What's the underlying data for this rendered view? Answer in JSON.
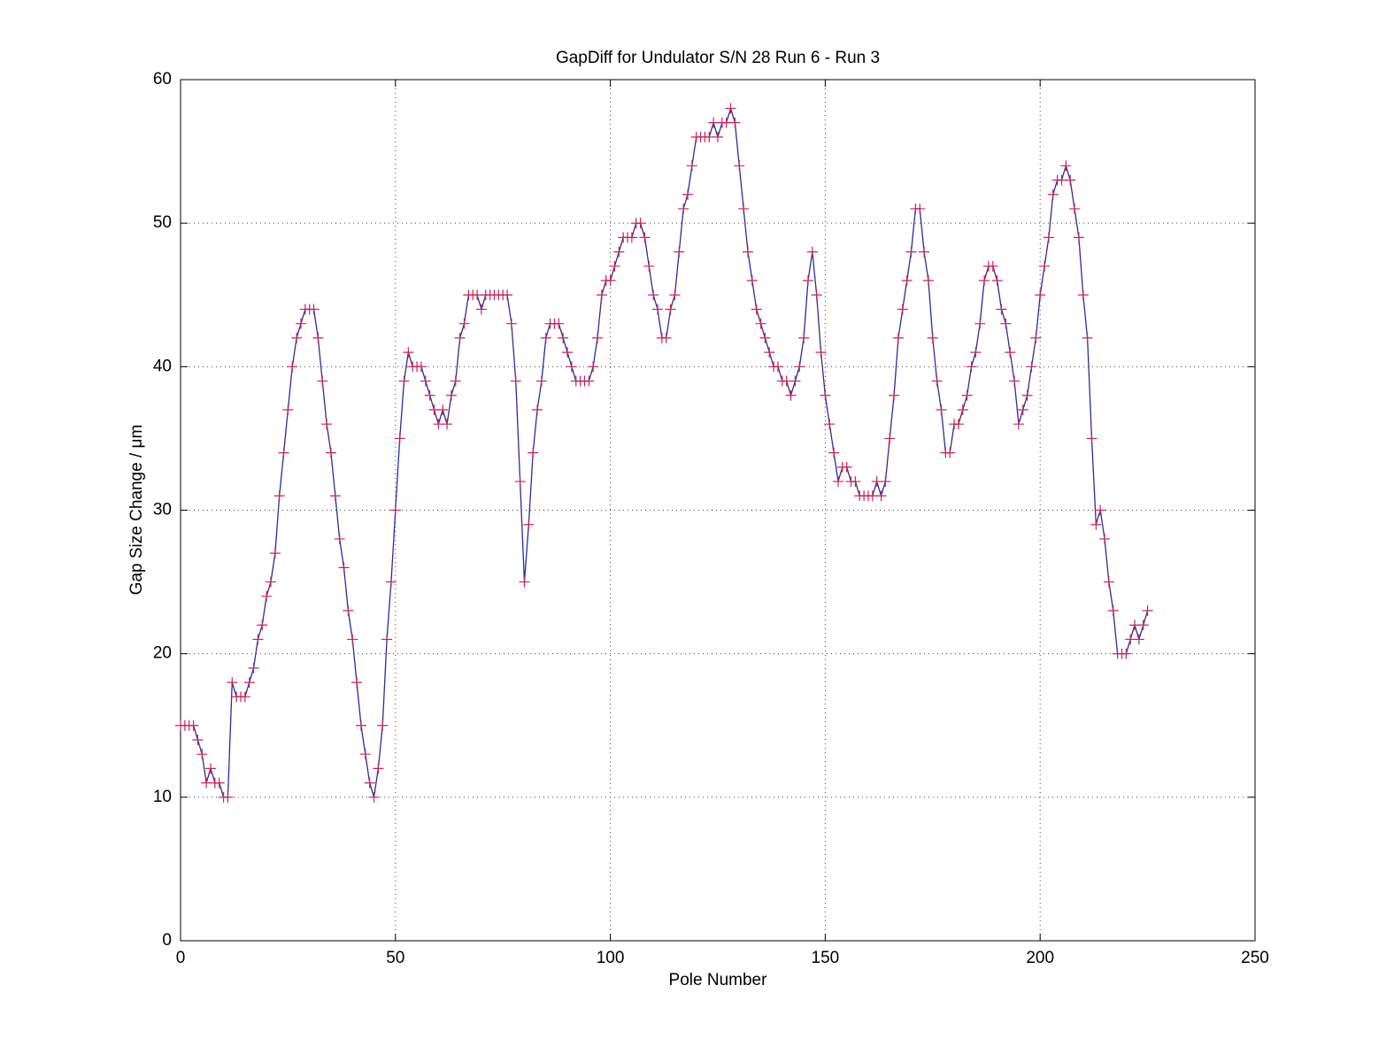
{
  "chart_data": {
    "type": "line",
    "title": "GapDiff  for Undulator S/N 28 Run 6 - Run 3",
    "x_label": "Pole Number",
    "y_label": "Gap Size Change / μm",
    "x": [
      0,
      1,
      2,
      3,
      4,
      5,
      6,
      7,
      8,
      9,
      10,
      11,
      12,
      13,
      14,
      15,
      16,
      17,
      18,
      19,
      20,
      21,
      22,
      23,
      24,
      25,
      26,
      27,
      28,
      29,
      30,
      31,
      32,
      33,
      34,
      35,
      36,
      37,
      38,
      39,
      40,
      41,
      42,
      43,
      44,
      45,
      46,
      47,
      48,
      49,
      50,
      51,
      52,
      53,
      54,
      55,
      56,
      57,
      58,
      59,
      60,
      61,
      62,
      63,
      64,
      65,
      66,
      67,
      68,
      69,
      70,
      71,
      72,
      73,
      74,
      75,
      76,
      77,
      78,
      79,
      80,
      81,
      82,
      83,
      84,
      85,
      86,
      87,
      88,
      89,
      90,
      91,
      92,
      93,
      94,
      95,
      96,
      97,
      98,
      99,
      100,
      101,
      102,
      103,
      104,
      105,
      106,
      107,
      108,
      109,
      110,
      111,
      112,
      113,
      114,
      115,
      116,
      117,
      118,
      119,
      120,
      121,
      122,
      123,
      124,
      125,
      126,
      127,
      128,
      129,
      130,
      131,
      132,
      133,
      134,
      135,
      136,
      137,
      138,
      139,
      140,
      141,
      142,
      143,
      144,
      145,
      146,
      147,
      148,
      149,
      150,
      151,
      152,
      153,
      154,
      155,
      156,
      157,
      158,
      159,
      160,
      161,
      162,
      163,
      164,
      165,
      166,
      167,
      168,
      169,
      170,
      171,
      172,
      173,
      174,
      175,
      176,
      177,
      178,
      179,
      180,
      181,
      182,
      183,
      184,
      185,
      186,
      187,
      188,
      189,
      190,
      191,
      192,
      193,
      194,
      195,
      196,
      197,
      198,
      199,
      200,
      201,
      202,
      203,
      204,
      205,
      206,
      207,
      208,
      209,
      210,
      211,
      212,
      213,
      214,
      215,
      216,
      217,
      218,
      219,
      220,
      221,
      222,
      223,
      224,
      225
    ],
    "series": [
      {
        "line_color": "#2b2b9e",
        "marker_color": "#cc2255",
        "values": [
          15,
          15,
          15,
          15,
          14,
          13,
          11,
          12,
          11,
          11,
          10,
          10,
          18,
          17,
          17,
          17,
          18,
          19,
          21,
          22,
          24,
          25,
          27,
          31,
          34,
          37,
          40,
          42,
          43,
          44,
          44,
          44,
          42,
          39,
          36,
          34,
          31,
          28,
          26,
          23,
          21,
          18,
          15,
          13,
          11,
          10,
          12,
          15,
          21,
          25,
          30,
          35,
          39,
          41,
          40,
          40,
          40,
          39,
          38,
          37,
          36,
          37,
          36,
          38,
          39,
          42,
          43,
          45,
          45,
          45,
          44,
          45,
          45,
          45,
          45,
          45,
          45,
          43,
          39,
          32,
          25,
          29,
          34,
          37,
          39,
          42,
          43,
          43,
          43,
          42,
          41,
          40,
          39,
          39,
          39,
          39,
          40,
          42,
          45,
          46,
          46,
          47,
          48,
          49,
          49,
          49,
          50,
          50,
          49,
          47,
          45,
          44,
          42,
          42,
          44,
          45,
          48,
          51,
          52,
          54,
          56,
          56,
          56,
          56,
          57,
          56,
          57,
          57,
          58,
          57,
          54,
          51,
          48,
          46,
          44,
          43,
          42,
          41,
          40,
          40,
          39,
          39,
          38,
          39,
          40,
          42,
          46,
          48,
          45,
          41,
          38,
          36,
          34,
          32,
          33,
          33,
          32,
          32,
          31,
          31,
          31,
          31,
          32,
          31,
          32,
          35,
          38,
          42,
          44,
          46,
          48,
          51,
          51,
          48,
          46,
          42,
          39,
          37,
          34,
          34,
          36,
          36,
          37,
          38,
          40,
          41,
          43,
          46,
          47,
          47,
          46,
          44,
          43,
          41,
          39,
          36,
          37,
          38,
          40,
          42,
          45,
          47,
          49,
          52,
          53,
          53,
          54,
          53,
          51,
          49,
          45,
          42,
          35,
          29,
          30,
          28,
          25,
          23,
          20,
          20,
          20,
          21,
          22,
          21,
          22,
          23
        ]
      }
    ],
    "xlim": [
      0,
      250
    ],
    "xticks": [
      0,
      50,
      100,
      150,
      200,
      250
    ],
    "ylim": [
      0,
      60
    ],
    "yticks": [
      0,
      10,
      20,
      30,
      40,
      50,
      60
    ],
    "grid": true
  }
}
